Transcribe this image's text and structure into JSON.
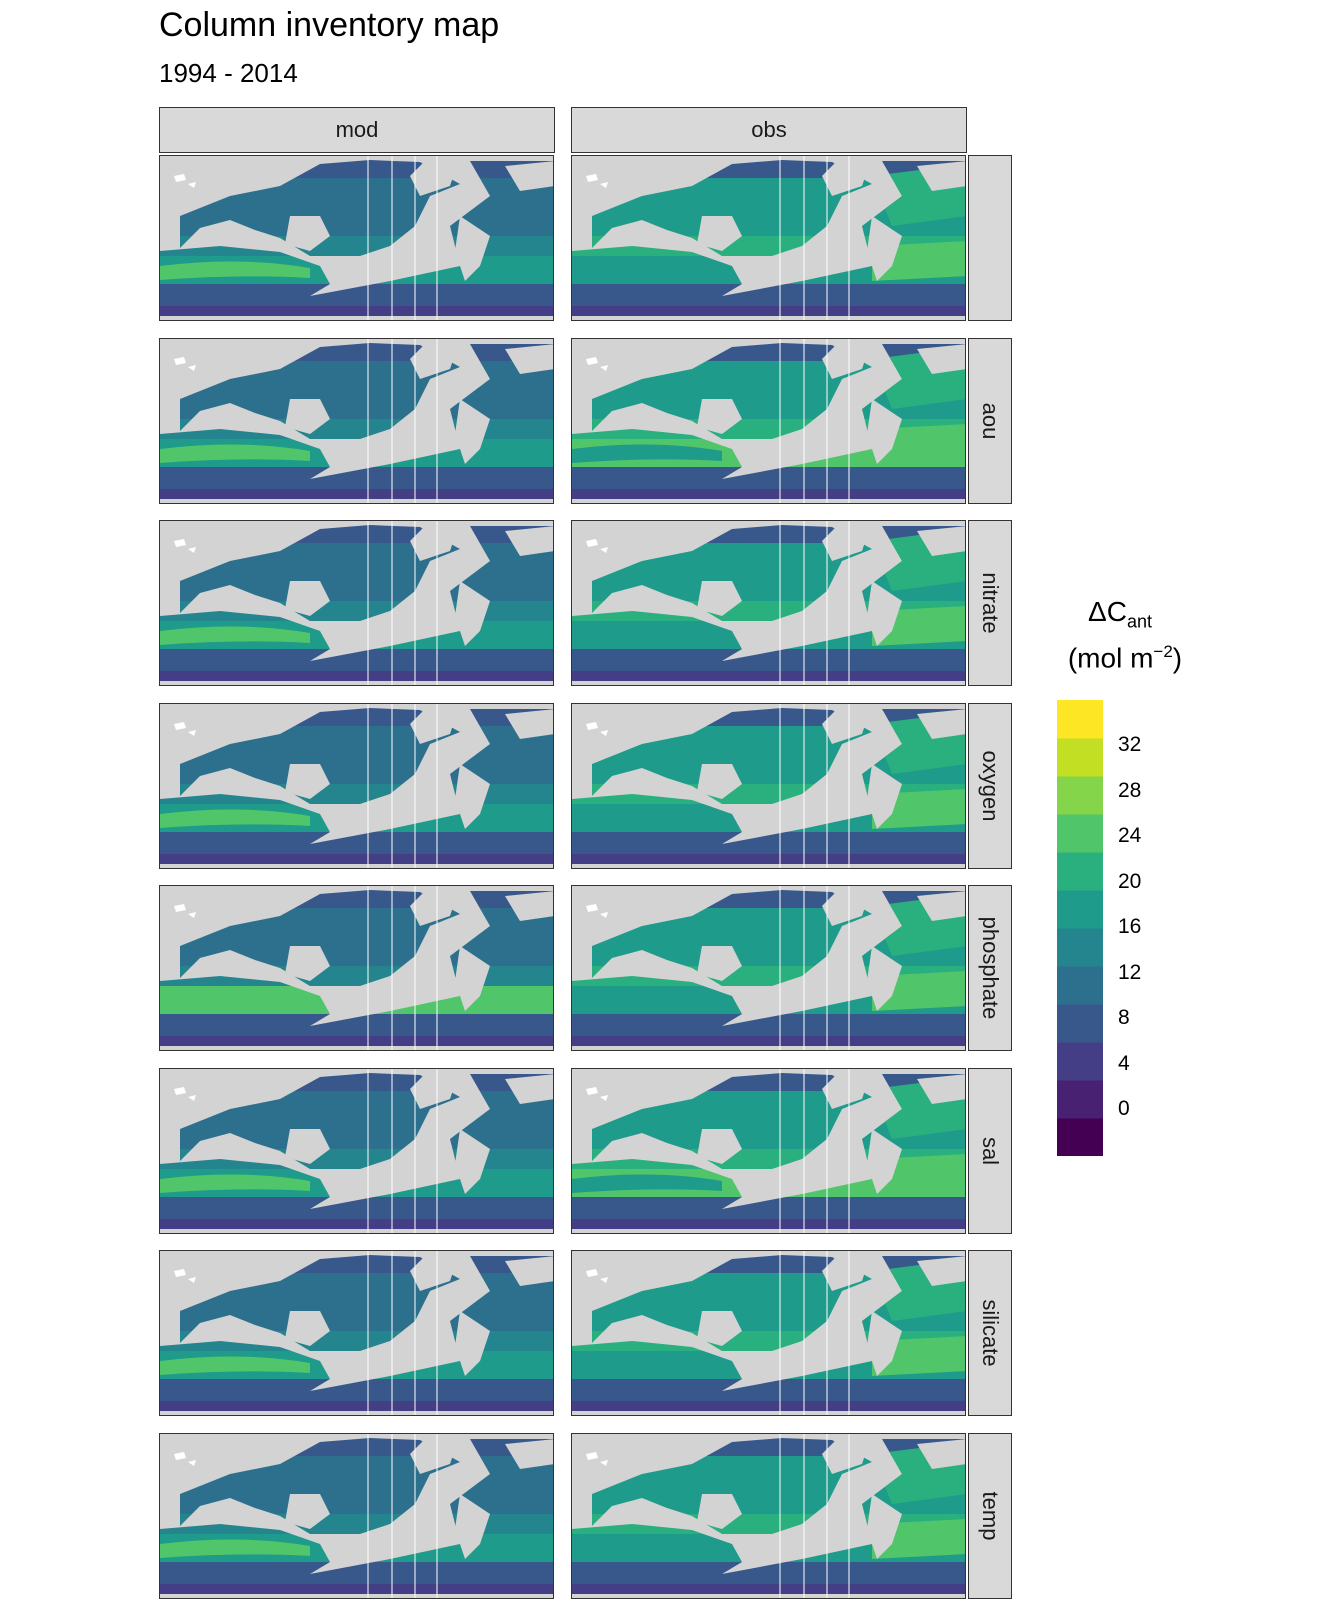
{
  "title": "Column inventory map",
  "subtitle": "1994 - 2014",
  "columns": [
    "mod",
    "obs"
  ],
  "rows": [
    "",
    "aou",
    "nitrate",
    "oxygen",
    "phosphate",
    "sal",
    "silicate",
    "temp"
  ],
  "legend": {
    "title_main": "ΔC",
    "title_sub": "ant",
    "unit_pre": "(mol m",
    "unit_sup": "−2",
    "unit_post": ")",
    "ticks": [
      "32",
      "28",
      "24",
      "20",
      "16",
      "12",
      "8",
      "4",
      "0"
    ],
    "colors": [
      "#440154",
      "#482173",
      "#433e85",
      "#38588c",
      "#2d708e",
      "#25858e",
      "#1e9b8a",
      "#2ab07f",
      "#51c56a",
      "#85d54a",
      "#c2df23",
      "#fde725"
    ]
  },
  "map_colors": {
    "land": "#d3d3d3",
    "artifact": "#ffffff"
  }
}
